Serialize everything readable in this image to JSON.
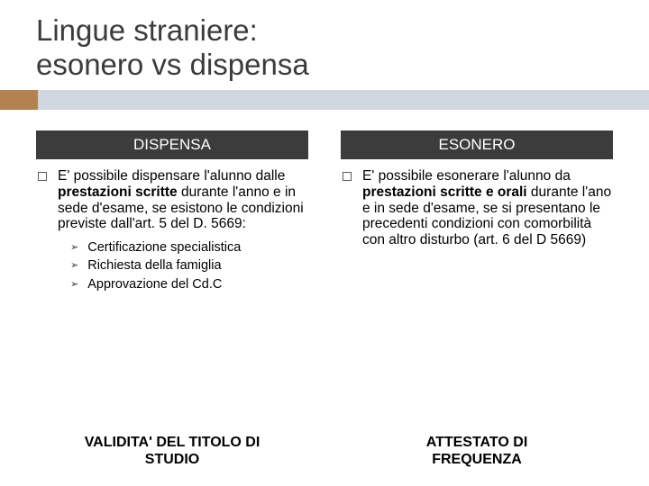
{
  "colors": {
    "stripe_accent": "#b28351",
    "stripe_main": "#d0d7e0",
    "header_left_bg": "#3c3c3c",
    "header_right_bg": "#3c3c3c",
    "title_color": "#3b3b3b"
  },
  "title_line1": "Lingue straniere:",
  "title_line2": "esonero vs dispensa",
  "left": {
    "header": "DISPENSA",
    "body_before_bold": "E' possibile dispensare l'alunno dalle ",
    "body_bold": "prestazioni scritte",
    "body_after_bold": " durante l'anno e in sede d'esame, se esistono le condizioni previste dall'art. 5 del D. 5669:",
    "sub1": "Certificazione specialistica",
    "sub2": "Richiesta della famiglia",
    "sub3": "Approvazione del Cd.C",
    "footer_line1": "VALIDITA' DEL TITOLO DI",
    "footer_line2": "STUDIO"
  },
  "right": {
    "header": "ESONERO",
    "body_before_bold": "E' possibile esonerare l'alunno da ",
    "body_bold": "prestazioni scritte e orali",
    "body_after_bold": " durante l'ano e in sede d'esame, se si presentano le precedenti condizioni con comorbilità con altro disturbo (art. 6 del D 5669)",
    "footer_line1": "ATTESTATO DI",
    "footer_line2": "FREQUENZA"
  }
}
